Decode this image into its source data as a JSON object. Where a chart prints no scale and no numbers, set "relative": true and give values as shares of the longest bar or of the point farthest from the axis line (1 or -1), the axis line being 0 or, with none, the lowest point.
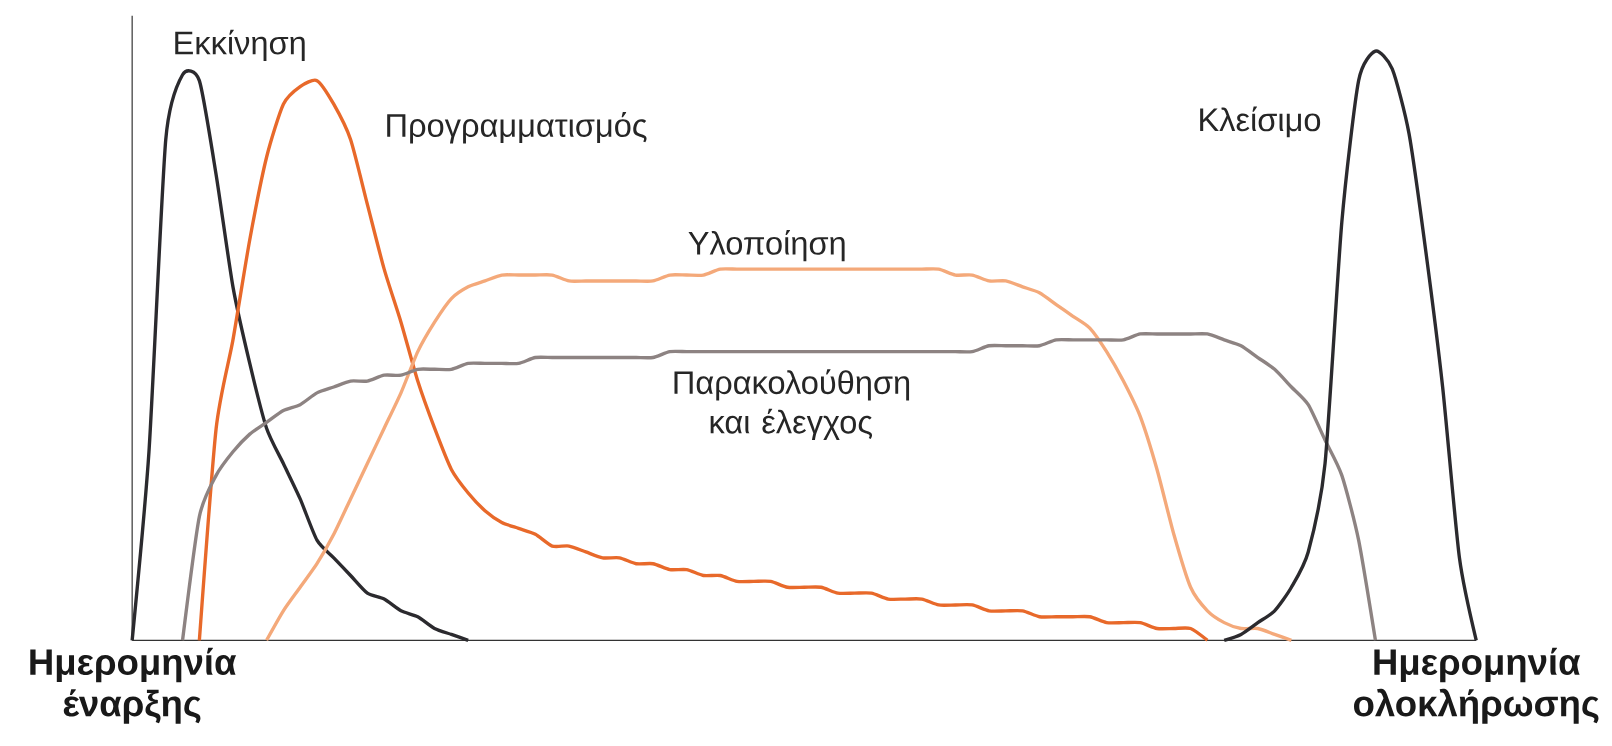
{
  "chart_data": {
    "type": "line",
    "relative": true,
    "marker": "none",
    "categories": [
      "Ημερομηνία έναρξης",
      null,
      null,
      null,
      null,
      null,
      null,
      null,
      null,
      null,
      null,
      null,
      null,
      null,
      null,
      null,
      null,
      null,
      null,
      null,
      null,
      null,
      null,
      null,
      null,
      null,
      null,
      null,
      null,
      null,
      null,
      null,
      null,
      null,
      null,
      null,
      null,
      null,
      null,
      null,
      null,
      null,
      null,
      null,
      null,
      null,
      null,
      null,
      null,
      null,
      null,
      null,
      null,
      null,
      null,
      null,
      null,
      null,
      null,
      null,
      null,
      null,
      null,
      null,
      null,
      null,
      null,
      null,
      null,
      null,
      null,
      null,
      null,
      null,
      null,
      null,
      null,
      null,
      null,
      null,
      "Ημερομηνία ολοκλήρωσης"
    ],
    "series": [
      {
        "name": "Εκκίνηση",
        "color": "#2b2a2e",
        "values": [
          0,
          0.32,
          0.85,
          0.96,
          0.95,
          0.79,
          0.6,
          0.47,
          0.36,
          0.3,
          0.24,
          0.17,
          0.14,
          0.11,
          0.08,
          0.07,
          0.05,
          0.04,
          0.02,
          0.01,
          0,
          null,
          null,
          null,
          null,
          null,
          null,
          null,
          null,
          null,
          null,
          null,
          null,
          null,
          null,
          null,
          null,
          null,
          null,
          null,
          null,
          null,
          null,
          null,
          null,
          null,
          null,
          null,
          null,
          null,
          null,
          null,
          null,
          null,
          null,
          null,
          null,
          null,
          null,
          null,
          null,
          null,
          null,
          null,
          null,
          null,
          null,
          null,
          null,
          null,
          null,
          null,
          null,
          null,
          null,
          null,
          null,
          null,
          null,
          null,
          null
        ]
      },
      {
        "name": "Προγραμματισμός",
        "color": "#e8692a",
        "values": [
          null,
          null,
          null,
          null,
          0,
          0.36,
          0.51,
          0.68,
          0.82,
          0.91,
          0.94,
          0.95,
          0.91,
          0.85,
          0.74,
          0.63,
          0.54,
          0.44,
          0.36,
          0.29,
          0.25,
          0.22,
          0.2,
          0.19,
          0.18,
          0.16,
          0.16,
          0.15,
          0.14,
          0.14,
          0.13,
          0.13,
          0.12,
          0.12,
          0.11,
          0.11,
          0.1,
          0.1,
          0.1,
          0.09,
          0.09,
          0.09,
          0.08,
          0.08,
          0.08,
          0.07,
          0.07,
          0.07,
          0.06,
          0.06,
          0.06,
          0.05,
          0.05,
          0.05,
          0.04,
          0.04,
          0.04,
          0.04,
          0.03,
          0.03,
          0.03,
          0.02,
          0.02,
          0.02,
          0,
          null,
          null,
          null,
          null,
          null,
          null,
          null,
          null,
          null,
          null,
          null,
          null,
          null,
          null,
          null,
          null
        ]
      },
      {
        "name": "Υλοποίηση",
        "color": "#f4a97a",
        "values": [
          null,
          null,
          null,
          null,
          null,
          null,
          null,
          null,
          0,
          0.05,
          0.09,
          0.13,
          0.18,
          0.24,
          0.3,
          0.36,
          0.42,
          0.49,
          0.54,
          0.58,
          0.6,
          0.61,
          0.62,
          0.62,
          0.62,
          0.62,
          0.61,
          0.61,
          0.61,
          0.61,
          0.61,
          0.61,
          0.62,
          0.62,
          0.62,
          0.63,
          0.63,
          0.63,
          0.63,
          0.63,
          0.63,
          0.63,
          0.63,
          0.63,
          0.63,
          0.63,
          0.63,
          0.63,
          0.63,
          0.62,
          0.62,
          0.61,
          0.61,
          0.6,
          0.59,
          0.57,
          0.55,
          0.53,
          0.49,
          0.44,
          0.38,
          0.29,
          0.18,
          0.09,
          0.05,
          0.03,
          0.02,
          0.02,
          0.01,
          0,
          null,
          null,
          null,
          null,
          null,
          null,
          null,
          null,
          null,
          null,
          null
        ]
      },
      {
        "name": "Παρακολούθηση και έλεγχος",
        "color": "#8d8382",
        "values": [
          null,
          null,
          null,
          0,
          0.21,
          0.28,
          0.32,
          0.35,
          0.37,
          0.39,
          0.4,
          0.42,
          0.43,
          0.44,
          0.44,
          0.45,
          0.45,
          0.46,
          0.46,
          0.46,
          0.47,
          0.47,
          0.47,
          0.47,
          0.48,
          0.48,
          0.48,
          0.48,
          0.48,
          0.48,
          0.48,
          0.48,
          0.49,
          0.49,
          0.49,
          0.49,
          0.49,
          0.49,
          0.49,
          0.49,
          0.49,
          0.49,
          0.49,
          0.49,
          0.49,
          0.49,
          0.49,
          0.49,
          0.49,
          0.49,
          0.49,
          0.5,
          0.5,
          0.5,
          0.5,
          0.51,
          0.51,
          0.51,
          0.51,
          0.51,
          0.52,
          0.52,
          0.52,
          0.52,
          0.52,
          0.51,
          0.5,
          0.48,
          0.46,
          0.43,
          0.4,
          0.34,
          0.28,
          0.17,
          0,
          null,
          null,
          null,
          null,
          null,
          null
        ]
      },
      {
        "name": "Κλείσιμο",
        "color": "#2b2a2e",
        "values": [
          null,
          null,
          null,
          null,
          null,
          null,
          null,
          null,
          null,
          null,
          null,
          null,
          null,
          null,
          null,
          null,
          null,
          null,
          null,
          null,
          null,
          null,
          null,
          null,
          null,
          null,
          null,
          null,
          null,
          null,
          null,
          null,
          null,
          null,
          null,
          null,
          null,
          null,
          null,
          null,
          null,
          null,
          null,
          null,
          null,
          null,
          null,
          null,
          null,
          null,
          null,
          null,
          null,
          null,
          null,
          null,
          null,
          null,
          null,
          null,
          null,
          null,
          null,
          null,
          null,
          0,
          0.01,
          0.03,
          0.05,
          0.09,
          0.15,
          0.3,
          0.71,
          0.95,
          1,
          0.97,
          0.86,
          0.66,
          0.43,
          0.14,
          0
        ]
      }
    ]
  }
}
